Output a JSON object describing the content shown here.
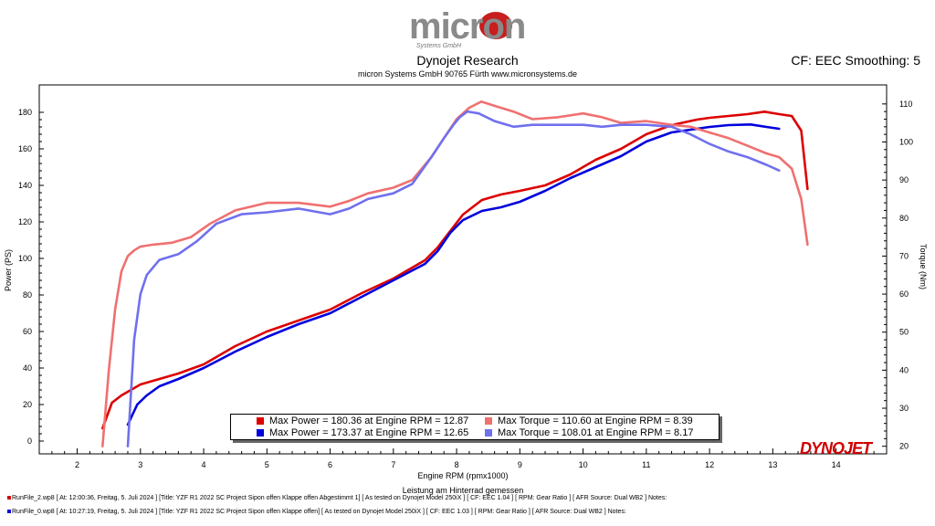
{
  "header": {
    "logo_text": "micron",
    "logo_subtext": "Systems GmbH",
    "title": "Dynojet Research",
    "subtitle": "micron Systems GmbH  90765 Fürth www.micronsystems.de",
    "cf_label": "CF: EEC Smoothing: 5"
  },
  "footer": {
    "line1": "RunFile_2.wp8 [ At: 12:00:36, Freitag, 5. Juli 2024 ] [Title: YZF R1 2022 SC Project Sipon offen Klappe offen Abgestimmt 1] [ As tested on Dynojet Model 250iX ] [ CF: EEC 1.04 ] [ RPM: Gear Ratio ] [ AFR Source: Dual WB2 ] Notes:",
    "line2": "RunFile_0.wp8 [ At: 10:27:19, Freitag, 5. Juli 2024 ] [Title: YZF R1 2022 SC Project Sipon offen Klappe offen] [ As tested on Dynojet Model 250iX ] [ CF: EEC 1.03 ] [ RPM: Gear Ratio ] [ AFR Source: Dual WB2 ] Notes:",
    "line1_color": "#dd0000",
    "line2_color": "#0000dd"
  },
  "brand": {
    "dynojet_text": "DYNOJET"
  },
  "legend": {
    "p1": "Max Power = 180.36 at Engine RPM = 12.87",
    "p2": "Max Power = 173.37 at Engine RPM = 12.65",
    "t1": "Max Torque = 110.60 at Engine RPM = 8.39",
    "t2": "Max Torque = 108.01 at Engine RPM = 8.17"
  },
  "chart_data": {
    "type": "line",
    "xlabel": "Engine RPM (rpmx1000)",
    "xlabel2": "Leistung am Hinterrad gemessen",
    "ylabel": "Power (PS)",
    "y2label": "Torque (Nm)",
    "xlim": [
      1.4,
      14.8
    ],
    "ylim": [
      -7,
      195
    ],
    "y2lim": [
      18,
      115
    ],
    "x_ticks": [
      2,
      3,
      4,
      5,
      6,
      7,
      8,
      9,
      10,
      11,
      12,
      13,
      14
    ],
    "y_ticks": [
      0,
      20,
      40,
      60,
      80,
      100,
      120,
      140,
      160,
      180
    ],
    "y2_ticks": [
      20,
      30,
      40,
      50,
      60,
      70,
      80,
      90,
      100,
      110
    ],
    "series": [
      {
        "name": "Power RunFile_2",
        "axis": "left",
        "color": "#dd0000",
        "x": [
          2.4,
          2.55,
          2.7,
          2.85,
          3.0,
          3.3,
          3.6,
          4.0,
          4.5,
          5.0,
          5.5,
          6.0,
          6.5,
          7.0,
          7.5,
          7.7,
          7.9,
          8.1,
          8.4,
          8.7,
          9.0,
          9.4,
          9.8,
          10.2,
          10.6,
          11.0,
          11.4,
          11.8,
          12.0,
          12.3,
          12.6,
          12.87,
          13.1,
          13.3,
          13.45,
          13.55
        ],
        "y": [
          7,
          21,
          25,
          28,
          31,
          34,
          37,
          42,
          52,
          60,
          66,
          72,
          81,
          89,
          99,
          106,
          115,
          124,
          132,
          135,
          137,
          140,
          146,
          154,
          160,
          168,
          173,
          176,
          177,
          178,
          179,
          180.36,
          179,
          178,
          170,
          138
        ]
      },
      {
        "name": "Power RunFile_0",
        "axis": "left",
        "color": "#0000dd",
        "x": [
          2.8,
          2.95,
          3.1,
          3.3,
          3.6,
          4.0,
          4.5,
          5.0,
          5.5,
          6.0,
          6.5,
          7.0,
          7.5,
          7.7,
          7.9,
          8.1,
          8.4,
          8.7,
          9.0,
          9.4,
          9.8,
          10.2,
          10.6,
          11.0,
          11.4,
          11.8,
          12.0,
          12.3,
          12.65,
          12.9,
          13.1
        ],
        "y": [
          9,
          20,
          25,
          30,
          34,
          40,
          49,
          57,
          64,
          70,
          79,
          88,
          97,
          104,
          114,
          121,
          126,
          128,
          131,
          137,
          144,
          150,
          156,
          164,
          169,
          171,
          172,
          173,
          173.37,
          172,
          171
        ]
      },
      {
        "name": "Torque RunFile_2",
        "axis": "right",
        "color": "#f07070",
        "x": [
          2.4,
          2.5,
          2.6,
          2.7,
          2.8,
          2.9,
          3.0,
          3.2,
          3.5,
          3.8,
          4.1,
          4.5,
          5.0,
          5.5,
          6.0,
          6.3,
          6.6,
          7.0,
          7.3,
          7.6,
          7.8,
          8.0,
          8.2,
          8.39,
          8.6,
          8.9,
          9.2,
          9.6,
          10.0,
          10.3,
          10.6,
          11.0,
          11.4,
          11.7,
          12.0,
          12.3,
          12.6,
          12.9,
          13.1,
          13.3,
          13.45,
          13.55
        ],
        "y": [
          20,
          40,
          56,
          66,
          70,
          71.5,
          72.5,
          73,
          73.5,
          75,
          78.5,
          82,
          84,
          84,
          83,
          84.5,
          86.5,
          88,
          90,
          96,
          101,
          106,
          109,
          110.6,
          109.5,
          108,
          106,
          106.5,
          107.5,
          106.5,
          105,
          105.5,
          104.5,
          104,
          102.5,
          101,
          99,
          97,
          96,
          93,
          85,
          73
        ]
      },
      {
        "name": "Torque RunFile_0",
        "axis": "right",
        "color": "#7070ee",
        "x": [
          2.8,
          2.9,
          3.0,
          3.1,
          3.3,
          3.6,
          3.9,
          4.2,
          4.6,
          5.0,
          5.5,
          6.0,
          6.3,
          6.6,
          7.0,
          7.3,
          7.6,
          7.8,
          7.95,
          8.05,
          8.17,
          8.35,
          8.6,
          8.9,
          9.2,
          9.6,
          10.0,
          10.3,
          10.6,
          11.0,
          11.4,
          11.7,
          12.0,
          12.3,
          12.6,
          12.9,
          13.1
        ],
        "y": [
          20,
          48,
          60,
          65,
          69,
          70.5,
          74,
          78.5,
          81,
          81.5,
          82.5,
          81,
          82.5,
          85,
          86.5,
          89,
          96,
          101,
          104.5,
          106.5,
          108.01,
          107.5,
          105.5,
          104,
          104.5,
          104.5,
          104.5,
          104,
          104.5,
          104.5,
          104,
          102,
          99.5,
          97.5,
          96,
          94,
          92.5
        ]
      }
    ]
  }
}
